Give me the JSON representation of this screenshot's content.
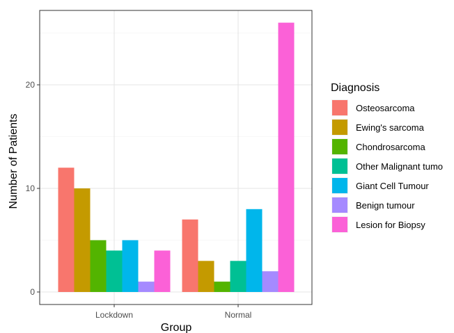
{
  "chart_data": {
    "type": "bar",
    "title": "",
    "xlabel": "Group",
    "ylabel": "Number of Patients",
    "categories": [
      "Lockdown",
      "Normal"
    ],
    "ylim": [
      0,
      27
    ],
    "yticks": [
      0,
      10,
      20
    ],
    "grid": true,
    "legend_position": "right",
    "legend_title": "Diagnosis",
    "series": [
      {
        "name": "Osteosarcoma",
        "color": "#F8766D",
        "values": [
          12,
          7
        ]
      },
      {
        "name": "Ewing's sarcoma",
        "color": "#C49A00",
        "values": [
          10,
          3
        ]
      },
      {
        "name": "Chondrosarcoma",
        "color": "#53B400",
        "values": [
          5,
          1
        ]
      },
      {
        "name": "Other Malignant tumo",
        "color": "#00C094",
        "values": [
          4,
          3
        ]
      },
      {
        "name": "Giant Cell Tumour",
        "color": "#00B6EB",
        "values": [
          5,
          8
        ]
      },
      {
        "name": "Benign tumour",
        "color": "#A58AFF",
        "values": [
          1,
          2
        ]
      },
      {
        "name": "Lesion for Biopsy",
        "color": "#FB61D7",
        "values": [
          4,
          26
        ]
      }
    ]
  }
}
